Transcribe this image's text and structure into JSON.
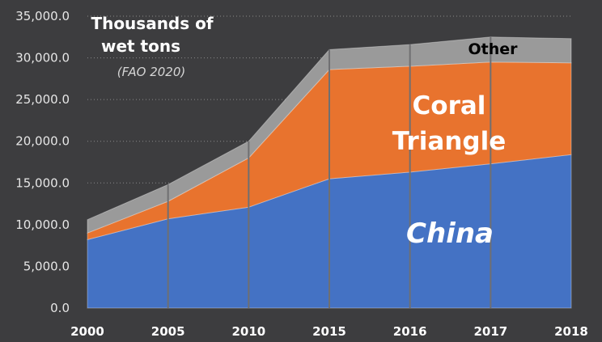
{
  "chart_data": {
    "type": "area",
    "stacked": true,
    "title": [
      "Thousands of",
      "wet tons"
    ],
    "subtitle": "(FAO 2020)",
    "categories": [
      "2000",
      "2005",
      "2010",
      "2015",
      "2016",
      "2017",
      "2018"
    ],
    "ylim": [
      0,
      35000
    ],
    "yticks": [
      "0.0",
      "5,000.0",
      "10,000.0",
      "15,000.0",
      "20,000.0",
      "25,000.0",
      "30,000.0",
      "35,000.0"
    ],
    "grid": true,
    "series": [
      {
        "name": "China",
        "label": [
          "China"
        ],
        "color": "#4472c4",
        "values": [
          8200,
          10700,
          12100,
          15500,
          16300,
          17300,
          18400
        ]
      },
      {
        "name": "Coral Triangle",
        "label": [
          "Coral",
          "Triangle"
        ],
        "color": "#e8732e",
        "values": [
          800,
          2100,
          5900,
          13100,
          12700,
          12200,
          11000
        ]
      },
      {
        "name": "Other",
        "label": [
          "Other"
        ],
        "color": "#9a9a9a",
        "values": [
          1600,
          2000,
          2000,
          2400,
          2600,
          3000,
          2900
        ]
      }
    ]
  }
}
